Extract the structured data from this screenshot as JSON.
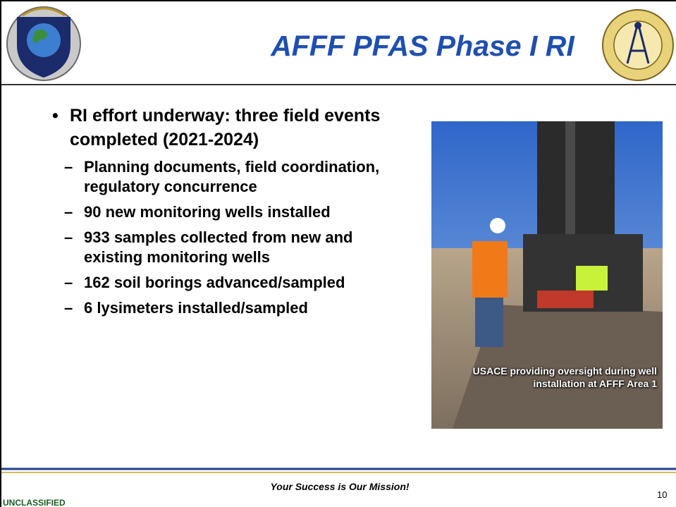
{
  "header": {
    "title": "AFFF PFAS Phase I RI"
  },
  "bullets": [
    {
      "text": "RI effort underway: three field events completed (2021-2024)",
      "subitems": [
        "Planning documents, field coordination, regulatory concurrence",
        "90 new monitoring wells installed",
        "933 samples collected from new and existing monitoring wells",
        "162 soil borings advanced/sampled",
        "6 lysimeters installed/sampled"
      ]
    }
  ],
  "photo": {
    "caption": "USACE providing oversight during well installation at AFFF Area 1"
  },
  "footer": {
    "slogan": "Your Success is Our Mission!",
    "classification": "UNCLASSIFIED",
    "page_number": "10"
  }
}
